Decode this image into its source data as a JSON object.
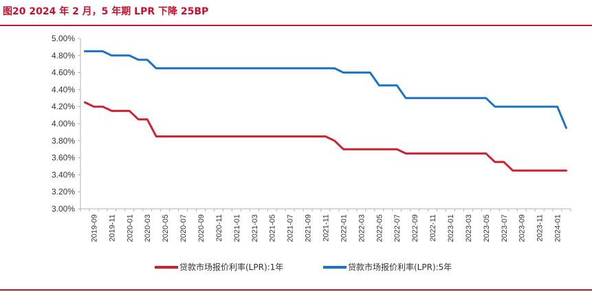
{
  "title": "图20  2024 年 2 月，5 年期 LPR 下降 25BP",
  "colors": {
    "accent": "#c8102e",
    "series1": "#d0202e",
    "series2": "#1a73c4",
    "axis": "#b0b0b0"
  },
  "chart_data": {
    "type": "line",
    "x": [
      "2019-08",
      "2019-09",
      "2019-10",
      "2019-11",
      "2019-12",
      "2020-01",
      "2020-02",
      "2020-03",
      "2020-04",
      "2020-05",
      "2020-06",
      "2020-07",
      "2020-08",
      "2020-09",
      "2020-10",
      "2020-11",
      "2020-12",
      "2021-01",
      "2021-02",
      "2021-03",
      "2021-04",
      "2021-05",
      "2021-06",
      "2021-07",
      "2021-08",
      "2021-09",
      "2021-10",
      "2021-11",
      "2021-12",
      "2022-01",
      "2022-02",
      "2022-03",
      "2022-04",
      "2022-05",
      "2022-06",
      "2022-07",
      "2022-08",
      "2022-09",
      "2022-10",
      "2022-11",
      "2022-12",
      "2023-01",
      "2023-02",
      "2023-03",
      "2023-04",
      "2023-05",
      "2023-06",
      "2023-07",
      "2023-08",
      "2023-09",
      "2023-10",
      "2023-11",
      "2023-12",
      "2024-01",
      "2024-02"
    ],
    "x_tick_labels": [
      "2019-09",
      "2019-11",
      "2020-01",
      "2020-03",
      "2020-05",
      "2020-07",
      "2020-09",
      "2020-11",
      "2021-01",
      "2021-03",
      "2021-05",
      "2021-07",
      "2021-09",
      "2021-11",
      "2022-01",
      "2022-03",
      "2022-05",
      "2022-07",
      "2022-09",
      "2022-11",
      "2023-01",
      "2023-03",
      "2023-05",
      "2023-07",
      "2023-09",
      "2023-11",
      "2024-01"
    ],
    "series": [
      {
        "name": "贷款市场报价利率(LPR):1年",
        "values": [
          4.25,
          4.2,
          4.2,
          4.15,
          4.15,
          4.15,
          4.05,
          4.05,
          3.85,
          3.85,
          3.85,
          3.85,
          3.85,
          3.85,
          3.85,
          3.85,
          3.85,
          3.85,
          3.85,
          3.85,
          3.85,
          3.85,
          3.85,
          3.85,
          3.85,
          3.85,
          3.85,
          3.85,
          3.8,
          3.7,
          3.7,
          3.7,
          3.7,
          3.7,
          3.7,
          3.7,
          3.65,
          3.65,
          3.65,
          3.65,
          3.65,
          3.65,
          3.65,
          3.65,
          3.65,
          3.65,
          3.55,
          3.55,
          3.45,
          3.45,
          3.45,
          3.45,
          3.45,
          3.45,
          3.45
        ]
      },
      {
        "name": "贷款市场报价利率(LPR):5年",
        "values": [
          4.85,
          4.85,
          4.85,
          4.8,
          4.8,
          4.8,
          4.75,
          4.75,
          4.65,
          4.65,
          4.65,
          4.65,
          4.65,
          4.65,
          4.65,
          4.65,
          4.65,
          4.65,
          4.65,
          4.65,
          4.65,
          4.65,
          4.65,
          4.65,
          4.65,
          4.65,
          4.65,
          4.65,
          4.65,
          4.6,
          4.6,
          4.6,
          4.6,
          4.45,
          4.45,
          4.45,
          4.3,
          4.3,
          4.3,
          4.3,
          4.3,
          4.3,
          4.3,
          4.3,
          4.3,
          4.3,
          4.2,
          4.2,
          4.2,
          4.2,
          4.2,
          4.2,
          4.2,
          4.2,
          3.95
        ]
      }
    ],
    "ylim": [
      3.0,
      5.0
    ],
    "y_ticks": [
      3.0,
      3.2,
      3.4,
      3.6,
      3.8,
      4.0,
      4.2,
      4.4,
      4.6,
      4.8,
      5.0
    ],
    "y_tick_labels": [
      "3.00%",
      "3.20%",
      "3.40%",
      "3.60%",
      "3.80%",
      "4.00%",
      "4.20%",
      "4.40%",
      "4.60%",
      "4.80%",
      "5.00%"
    ],
    "grid": false,
    "legend_position": "bottom"
  }
}
